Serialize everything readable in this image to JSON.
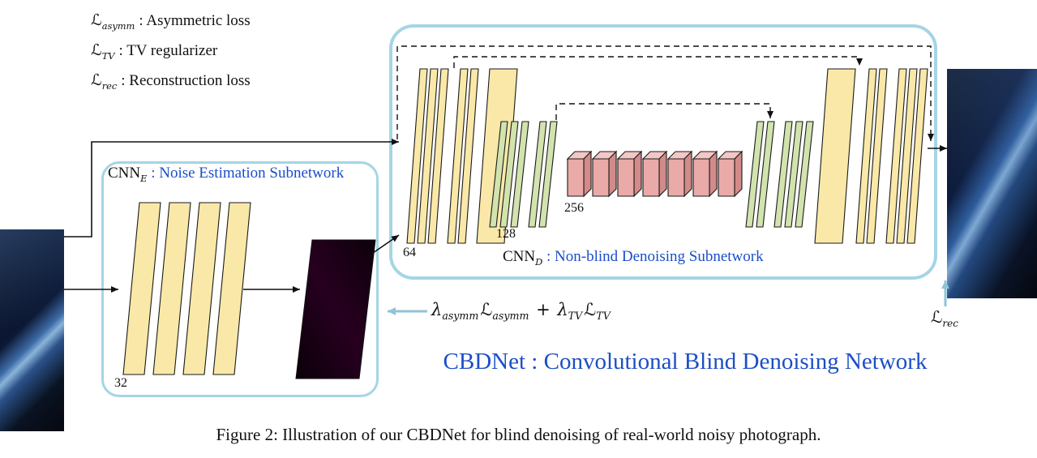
{
  "colors": {
    "blue_text": "#1b4ec8",
    "box_border": "#a5d5e5",
    "arrow_cyan": "#8fc4d8",
    "layer_yellow": "#fae8a8",
    "layer_green": "#d2e3ae",
    "layer_pink": "#e9aaa8"
  },
  "legend": {
    "items": [
      {
        "sym": "ℒ",
        "sub": "asymm",
        "desc": ": Asymmetric loss"
      },
      {
        "sym": "ℒ",
        "sub": "TV",
        "desc": ": TV regularizer"
      },
      {
        "sym": "ℒ",
        "sub": "rec",
        "desc": ": Reconstruction loss"
      }
    ]
  },
  "cnn_e": {
    "name": "CNN",
    "sub": "E",
    "desc": ": Noise Estimation Subnetwork",
    "width_label": "32"
  },
  "cnn_d": {
    "name": "CNN",
    "sub": "D",
    "desc": ": Non-blind Denoising Subnetwork",
    "width_labels": {
      "encoder": "64",
      "mid": "128",
      "bottleneck": "256"
    }
  },
  "formula": {
    "tokens": [
      {
        "main": "λ",
        "sub": "asymm"
      },
      {
        "main": "ℒ",
        "sub": "asymm"
      },
      {
        "main": " + ",
        "sub": ""
      },
      {
        "main": "λ",
        "sub": "TV"
      },
      {
        "main": "ℒ",
        "sub": "TV"
      }
    ]
  },
  "loss_rec": {
    "main": "ℒ",
    "sub": "rec"
  },
  "title": "CBDNet : Convolutional Blind Denoising Network",
  "caption": "Figure 2: Illustration of our CBDNet for blind denoising of real-world noisy photograph."
}
